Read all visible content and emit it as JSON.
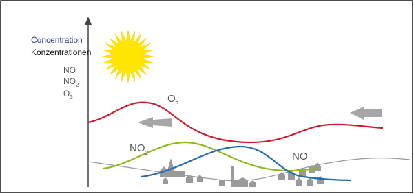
{
  "axis_label": {
    "en": "Concentration",
    "de": "Konzentrationen"
  },
  "legend": [
    {
      "text": "NO"
    },
    {
      "text": "NO",
      "sub": "2"
    },
    {
      "text": "O",
      "sub": "3"
    }
  ],
  "curve_labels": [
    {
      "text": "O",
      "sub": "3"
    },
    {
      "text": "NO",
      "sub": "2"
    },
    {
      "text": "NO"
    }
  ]
}
